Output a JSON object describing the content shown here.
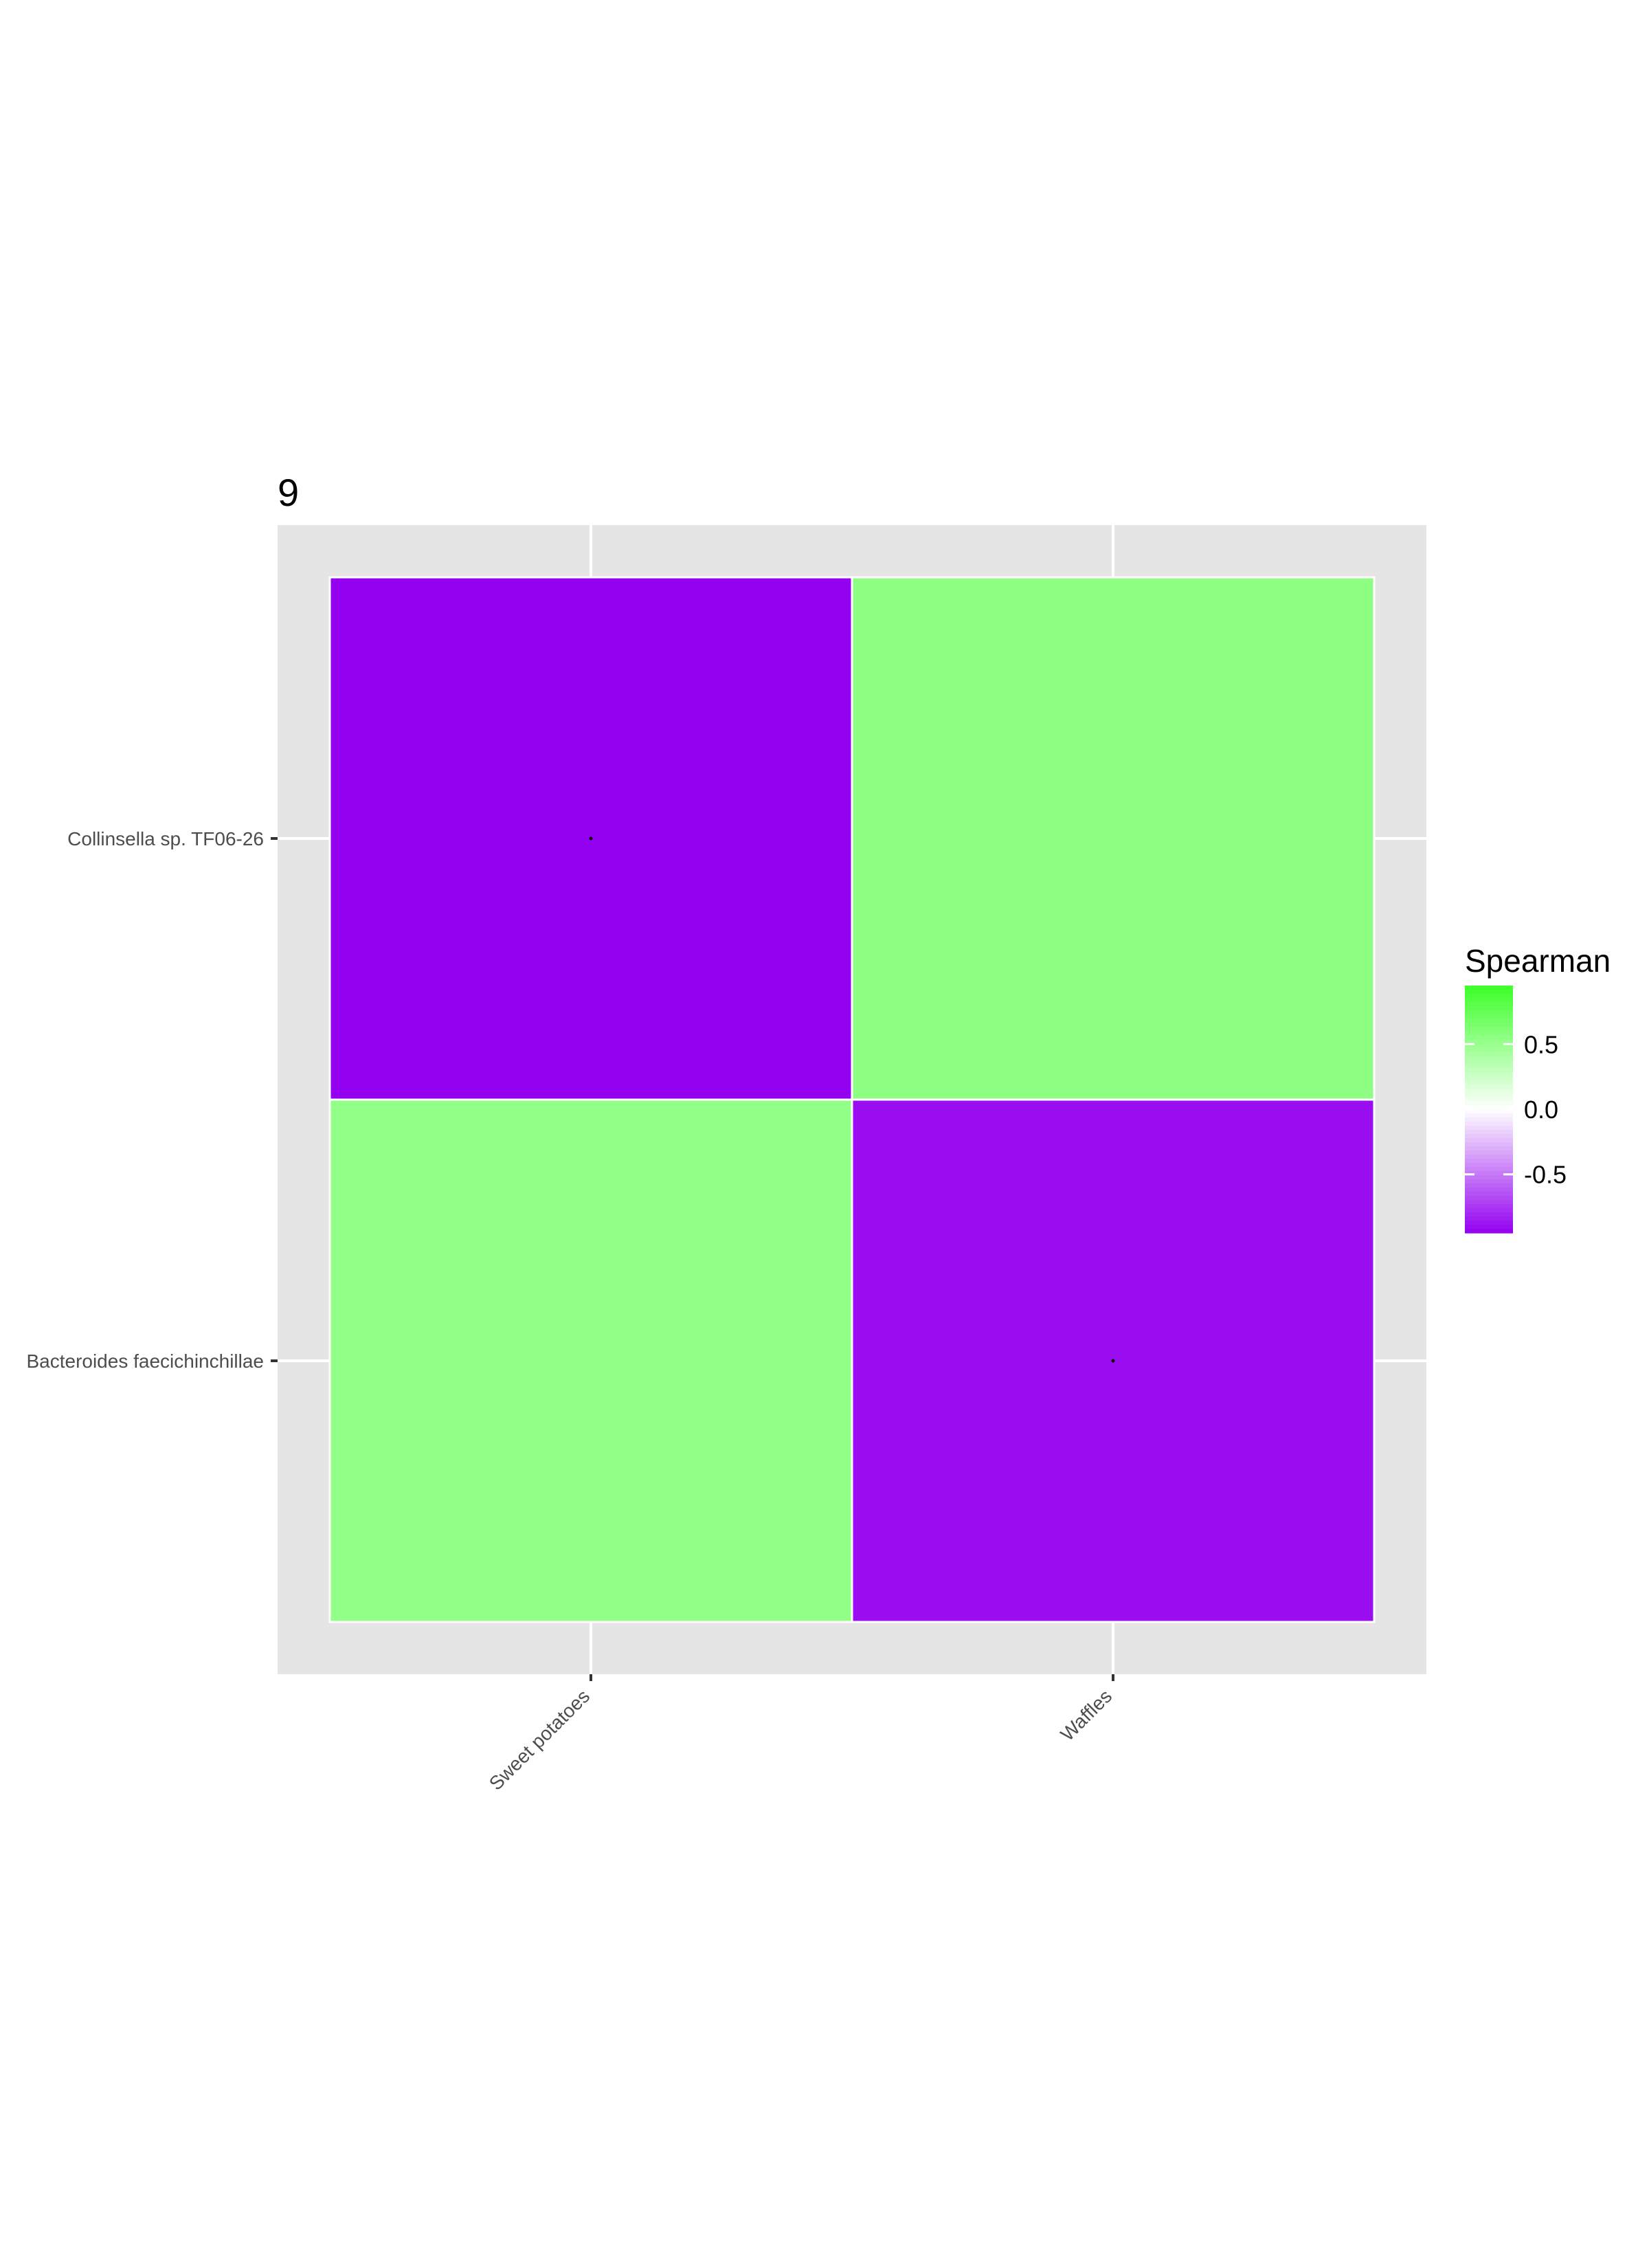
{
  "chart_data": {
    "type": "heatmap",
    "title": "9",
    "x_categories": [
      "Sweet potatoes",
      "Waffles"
    ],
    "y_categories": [
      "Collinsella sp. TF06-26",
      "Bacteroides faecichinchillae"
    ],
    "cells": [
      {
        "x": "Sweet potatoes",
        "y": "Collinsella sp. TF06-26",
        "value": -0.95,
        "significant": true
      },
      {
        "x": "Waffles",
        "y": "Collinsella sp. TF06-26",
        "value": 0.55,
        "significant": false
      },
      {
        "x": "Sweet potatoes",
        "y": "Bacteroides faecichinchillae",
        "value": 0.53,
        "significant": false
      },
      {
        "x": "Waffles",
        "y": "Bacteroides faecichinchillae",
        "value": -0.9,
        "significant": true
      }
    ],
    "legend": {
      "title": "Spearman",
      "placement": "right",
      "range": [
        -0.95,
        0.95
      ],
      "ticks": [
        {
          "value": 0.5,
          "label": "0.5"
        },
        {
          "value": 0.0,
          "label": "0.0"
        },
        {
          "value": -0.5,
          "label": "-0.5"
        }
      ],
      "low_color": "#9400f0",
      "mid_color": "#ffffff",
      "high_color": "#3cff28"
    },
    "panel_background": "#e5e5e5",
    "grid": true
  }
}
